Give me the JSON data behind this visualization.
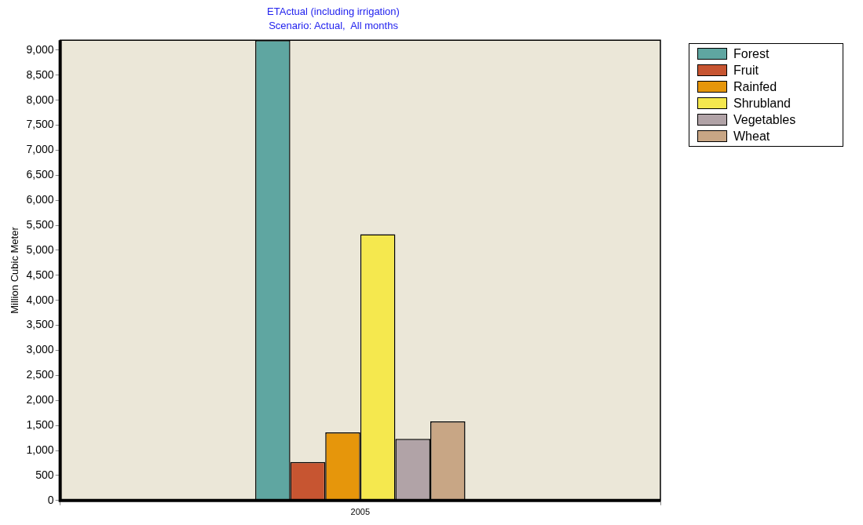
{
  "chart_data": {
    "type": "bar",
    "title": "ETActual (including irrigation)",
    "subtitle": "Scenario: Actual,  All months",
    "ylabel": "Million Cubic Meter",
    "categories": [
      "2005"
    ],
    "series": [
      {
        "name": "Forest",
        "color": "#5fa6a1",
        "values": [
          9200
        ]
      },
      {
        "name": "Fruit",
        "color": "#c75531",
        "values": [
          770
        ]
      },
      {
        "name": "Rainfed",
        "color": "#e6960b",
        "values": [
          1360
        ]
      },
      {
        "name": "Shrubland",
        "color": "#f5e84e",
        "values": [
          5320
        ]
      },
      {
        "name": "Vegetables",
        "color": "#b1a3a7",
        "values": [
          1230
        ]
      },
      {
        "name": "Wheat",
        "color": "#c8a685",
        "values": [
          1580
        ]
      }
    ],
    "ylim": [
      0,
      9200
    ],
    "yticks": [
      {
        "value": 0,
        "label": "0"
      },
      {
        "value": 500,
        "label": "500"
      },
      {
        "value": 1000,
        "label": "1,000"
      },
      {
        "value": 1500,
        "label": "1,500"
      },
      {
        "value": 2000,
        "label": "2,000"
      },
      {
        "value": 2500,
        "label": "2,500"
      },
      {
        "value": 3000,
        "label": "3,000"
      },
      {
        "value": 3500,
        "label": "3,500"
      },
      {
        "value": 4000,
        "label": "4,000"
      },
      {
        "value": 4500,
        "label": "4,500"
      },
      {
        "value": 5000,
        "label": "5,000"
      },
      {
        "value": 5500,
        "label": "5,500"
      },
      {
        "value": 6000,
        "label": "6,000"
      },
      {
        "value": 6500,
        "label": "6,500"
      },
      {
        "value": 7000,
        "label": "7,000"
      },
      {
        "value": 7500,
        "label": "7,500"
      },
      {
        "value": 8000,
        "label": "8,000"
      },
      {
        "value": 8500,
        "label": "8,500"
      },
      {
        "value": 9000,
        "label": "9,000"
      }
    ],
    "grid": false,
    "legend": "top right"
  }
}
